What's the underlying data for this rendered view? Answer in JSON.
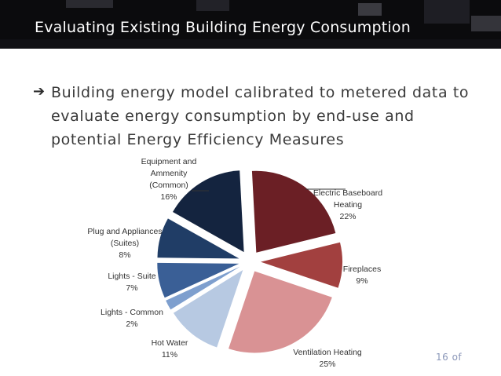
{
  "slide": {
    "title": "Evaluating Existing Building Energy Consumption",
    "bullet_marker": "➔",
    "bullet_text": "Building energy model calibrated to metered data to evaluate energy consumption by end-use and potential Energy Efficiency Measures",
    "page_label": "16 of"
  },
  "colors": {
    "header_bg": "#0b0b0d",
    "title_text": "#ffffff"
  },
  "chart_data": {
    "type": "pie",
    "title": "",
    "slices": [
      {
        "label": "Electric Baseboard Heating",
        "value": 22,
        "percent_label": "22%",
        "color": "#6b1f25"
      },
      {
        "label": "Fireplaces",
        "value": 9,
        "percent_label": "9%",
        "color": "#a2403f"
      },
      {
        "label": "Ventilation Heating",
        "value": 25,
        "percent_label": "25%",
        "color": "#d99294"
      },
      {
        "label": "Hot Water",
        "value": 11,
        "percent_label": "11%",
        "color": "#b7c9e2"
      },
      {
        "label": "Lights - Common",
        "value": 2,
        "percent_label": "2%",
        "color": "#7e9fce"
      },
      {
        "label": "Lights - Suite",
        "value": 7,
        "percent_label": "7%",
        "color": "#3a5f96"
      },
      {
        "label": "Plug and Appliances (Suites)",
        "value": 8,
        "percent_label": "8%",
        "color": "#203d66"
      },
      {
        "label": "Equipment and Ammenity (Common)",
        "value": 16,
        "percent_label": "16%",
        "color": "#14243f"
      }
    ]
  }
}
